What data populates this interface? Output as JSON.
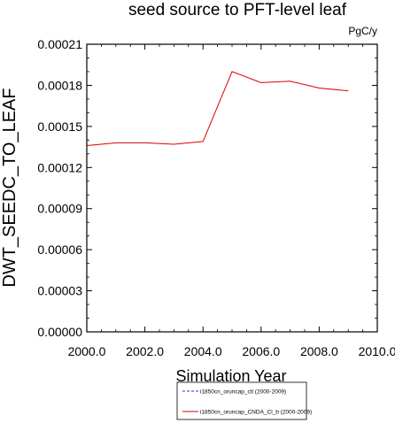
{
  "chart_data": {
    "type": "line",
    "title": "seed source to PFT-level leaf",
    "units": "PgC/y",
    "xlabel": "Simulation Year",
    "ylabel": "DWT_SEEDC_TO_LEAF",
    "xlim": [
      2000.0,
      2010.0
    ],
    "ylim": [
      0.0,
      0.00021
    ],
    "x_ticks": [
      "2000.0",
      "2002.0",
      "2004.0",
      "2006.0",
      "2008.0",
      "2010.0"
    ],
    "y_ticks": [
      "0.00000",
      "0.00003",
      "0.00006",
      "0.00009",
      "0.00012",
      "0.00015",
      "0.00018",
      "0.00021"
    ],
    "grid": false,
    "legend_position": "bottom",
    "series": [
      {
        "name": "i1850cn_oruncap_ctl (2000-2009)",
        "color": "#3333cc",
        "style": "dashed",
        "x": [
          2000,
          2001,
          2002,
          2003,
          2004,
          2005,
          2006,
          2007,
          2008,
          2009
        ],
        "values": [
          0,
          0,
          0,
          0,
          0,
          0,
          0,
          0,
          0,
          0
        ]
      },
      {
        "name": "i1850cn_oruncap_CNDA_Cl_b (2000-2009)",
        "color": "#dd0000",
        "style": "solid",
        "x": [
          2000,
          2001,
          2002,
          2003,
          2004,
          2005,
          2006,
          2007,
          2008,
          2009
        ],
        "values": [
          0.000136,
          0.000138,
          0.000138,
          0.000137,
          0.000139,
          0.00019,
          0.000182,
          0.000183,
          0.000178,
          0.000176
        ]
      }
    ]
  }
}
